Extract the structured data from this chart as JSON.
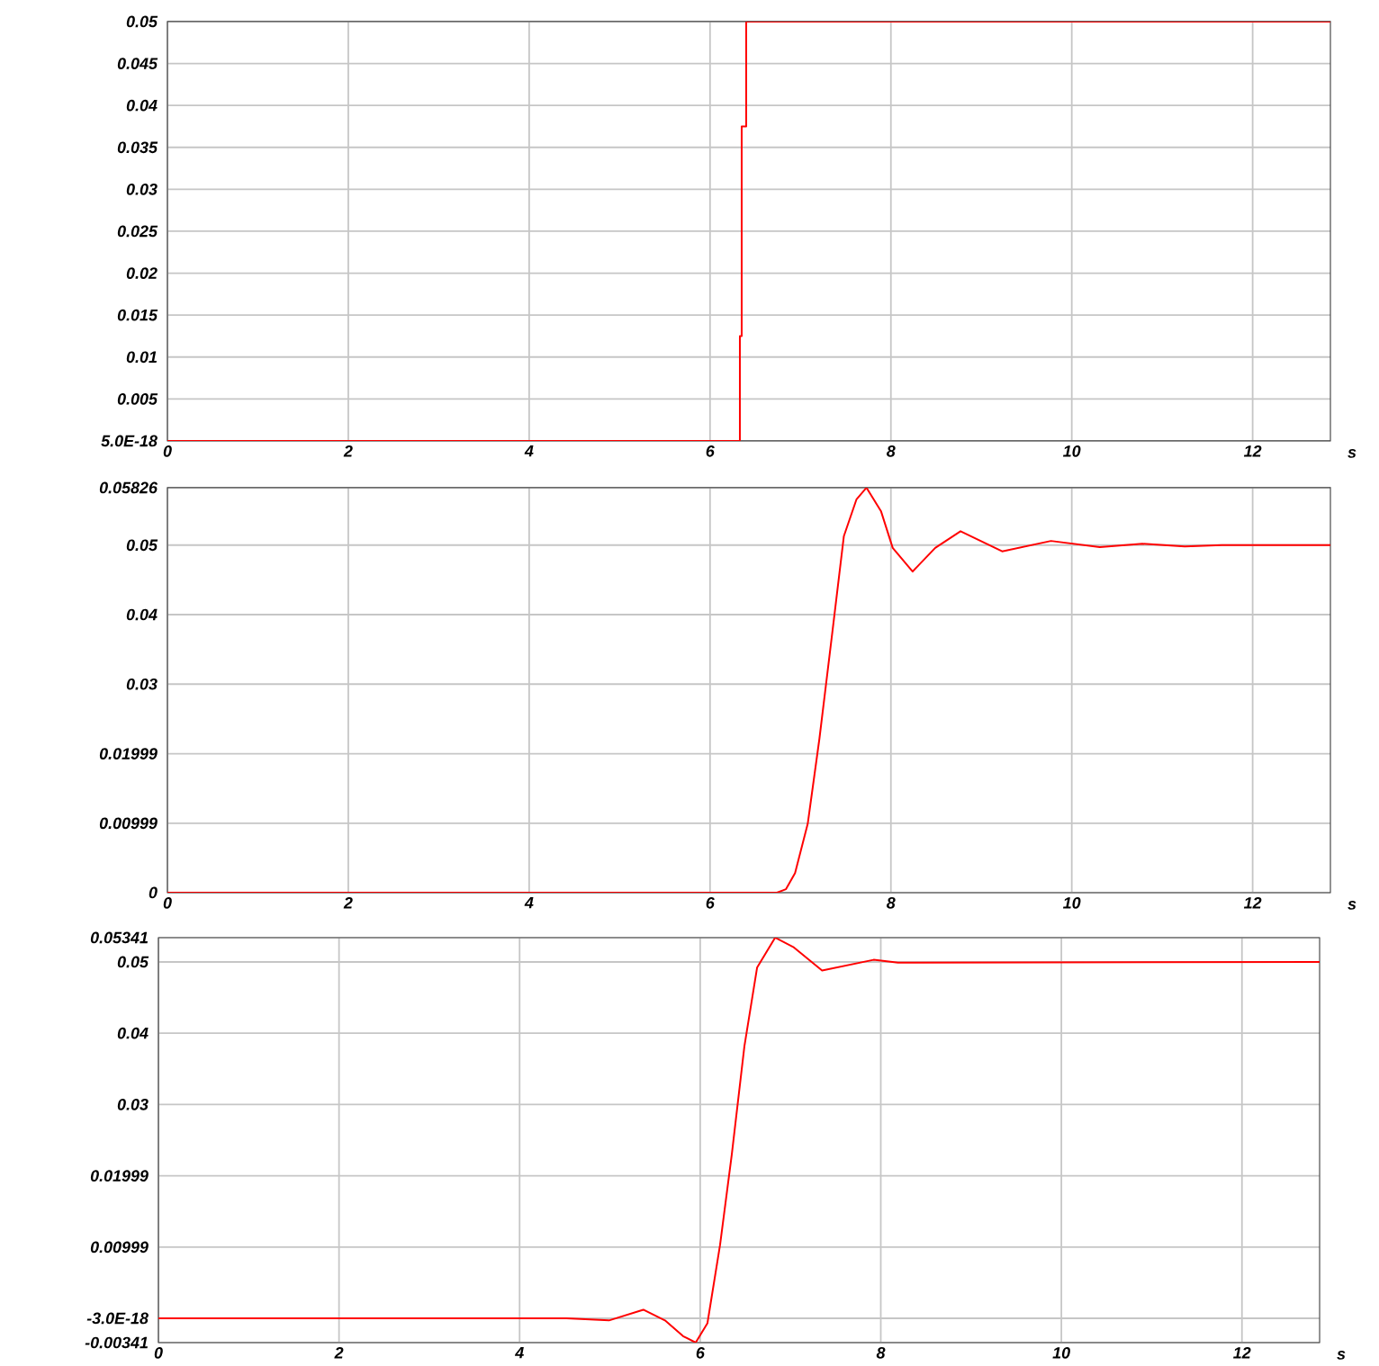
{
  "chart_data": [
    {
      "type": "line",
      "xlabel": "s",
      "xlim": [
        0,
        12.86
      ],
      "xticks": [
        0,
        2,
        4,
        6,
        8,
        10,
        12
      ],
      "ylim": [
        0,
        0.05
      ],
      "yticks": [
        {
          "value": 0,
          "label": "5.0E-18"
        },
        0.005,
        0.01,
        0.015,
        0.02,
        0.025,
        0.03,
        0.035,
        0.04,
        0.045,
        0.05
      ],
      "grid": true,
      "marker": "none",
      "line_style": "solid",
      "series": [
        {
          "color": "#ff0000",
          "x": [
            0,
            6.33,
            6.33,
            6.35,
            6.35,
            6.4,
            6.4,
            12.86
          ],
          "values": [
            0,
            0,
            0.0125,
            0.0125,
            0.0375,
            0.0375,
            0.05,
            0.05
          ]
        }
      ]
    },
    {
      "type": "line",
      "xlabel": "s",
      "xlim": [
        0,
        12.86
      ],
      "xticks": [
        0,
        2,
        4,
        6,
        8,
        10,
        12
      ],
      "ylim": [
        0,
        0.05826
      ],
      "yticks": [
        0,
        0.00999,
        0.01999,
        0.03,
        0.04,
        0.05,
        0.05826
      ],
      "grid": true,
      "marker": "none",
      "line_style": "solid",
      "series": [
        {
          "color": "#ff0000",
          "x": [
            0,
            6.74,
            6.84,
            6.94,
            7.08,
            7.21,
            7.35,
            7.48,
            7.62,
            7.73,
            7.89,
            8.02,
            8.24,
            8.49,
            8.77,
            9.23,
            9.77,
            10.31,
            10.78,
            11.25,
            11.66,
            12.86
          ],
          "values": [
            0,
            0,
            0.0005,
            0.0028,
            0.0099,
            0.0222,
            0.0372,
            0.0513,
            0.0566,
            0.05826,
            0.0549,
            0.0496,
            0.0462,
            0.0496,
            0.052,
            0.0491,
            0.0506,
            0.0497,
            0.0502,
            0.0498,
            0.05,
            0.05
          ]
        }
      ]
    },
    {
      "type": "line",
      "xlabel": "s",
      "xlim": [
        0,
        12.86
      ],
      "xticks": [
        0,
        2,
        4,
        6,
        8,
        10,
        12
      ],
      "ylim": [
        -0.00341,
        0.05341
      ],
      "yticks": [
        -0.00341,
        {
          "value": 0,
          "label": "-3.0E-18"
        },
        0.00999,
        0.01999,
        0.03,
        0.04,
        0.05,
        0.05341
      ],
      "grid": true,
      "marker": "none",
      "line_style": "solid",
      "series": [
        {
          "color": "#ff0000",
          "x": [
            0,
            4.52,
            4.99,
            5.37,
            5.61,
            5.81,
            5.95,
            6.08,
            6.22,
            6.35,
            6.49,
            6.63,
            6.83,
            7.03,
            7.35,
            7.92,
            8.19,
            12.86
          ],
          "values": [
            0,
            0,
            -0.0003,
            0.0012,
            -0.0003,
            -0.0025,
            -0.00341,
            -0.0007,
            0.0103,
            0.023,
            0.0382,
            0.0492,
            0.05341,
            0.0521,
            0.0488,
            0.0503,
            0.0499,
            0.05
          ]
        }
      ]
    }
  ]
}
